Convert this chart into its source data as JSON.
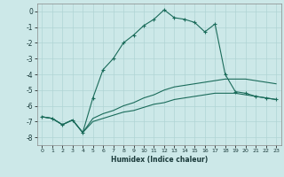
{
  "xlabel": "Humidex (Indice chaleur)",
  "background_color": "#cce8e8",
  "grid_color": "#b0d4d4",
  "line_color": "#1a6b5a",
  "xlim": [
    -0.5,
    23.5
  ],
  "ylim": [
    -8.5,
    0.5
  ],
  "yticks": [
    0,
    -1,
    -2,
    -3,
    -4,
    -5,
    -6,
    -7,
    -8
  ],
  "xticks": [
    0,
    1,
    2,
    3,
    4,
    5,
    6,
    7,
    8,
    9,
    10,
    11,
    12,
    13,
    14,
    15,
    16,
    17,
    18,
    19,
    20,
    21,
    22,
    23
  ],
  "main_x": [
    0,
    1,
    2,
    3,
    4,
    5,
    6,
    7,
    8,
    9,
    10,
    11,
    12,
    13,
    14,
    15,
    16,
    17,
    18,
    19,
    20,
    21,
    22,
    23
  ],
  "main_y": [
    -6.7,
    -6.8,
    -7.2,
    -6.9,
    -7.7,
    -5.5,
    -3.7,
    -3.0,
    -2.0,
    -1.5,
    -0.9,
    -0.5,
    0.1,
    -0.4,
    -0.5,
    -0.7,
    -1.3,
    -0.8,
    -4.0,
    -5.1,
    -5.2,
    -5.4,
    -5.5,
    -5.6
  ],
  "upper_x": [
    0,
    1,
    2,
    3,
    4,
    5,
    6,
    7,
    8,
    9,
    10,
    11,
    12,
    13,
    14,
    15,
    16,
    17,
    18,
    19,
    20,
    21,
    22,
    23
  ],
  "upper_y": [
    -6.7,
    -6.8,
    -7.2,
    -6.9,
    -7.7,
    -6.8,
    -6.5,
    -6.3,
    -6.0,
    -5.8,
    -5.5,
    -5.3,
    -5.0,
    -4.8,
    -4.7,
    -4.6,
    -4.5,
    -4.4,
    -4.3,
    -4.3,
    -4.3,
    -4.4,
    -4.5,
    -4.6
  ],
  "lower_x": [
    0,
    1,
    2,
    3,
    4,
    5,
    6,
    7,
    8,
    9,
    10,
    11,
    12,
    13,
    14,
    15,
    16,
    17,
    18,
    19,
    20,
    21,
    22,
    23
  ],
  "lower_y": [
    -6.7,
    -6.8,
    -7.2,
    -6.9,
    -7.7,
    -7.0,
    -6.8,
    -6.6,
    -6.4,
    -6.3,
    -6.1,
    -5.9,
    -5.8,
    -5.6,
    -5.5,
    -5.4,
    -5.3,
    -5.2,
    -5.2,
    -5.2,
    -5.3,
    -5.4,
    -5.5,
    -5.6
  ]
}
